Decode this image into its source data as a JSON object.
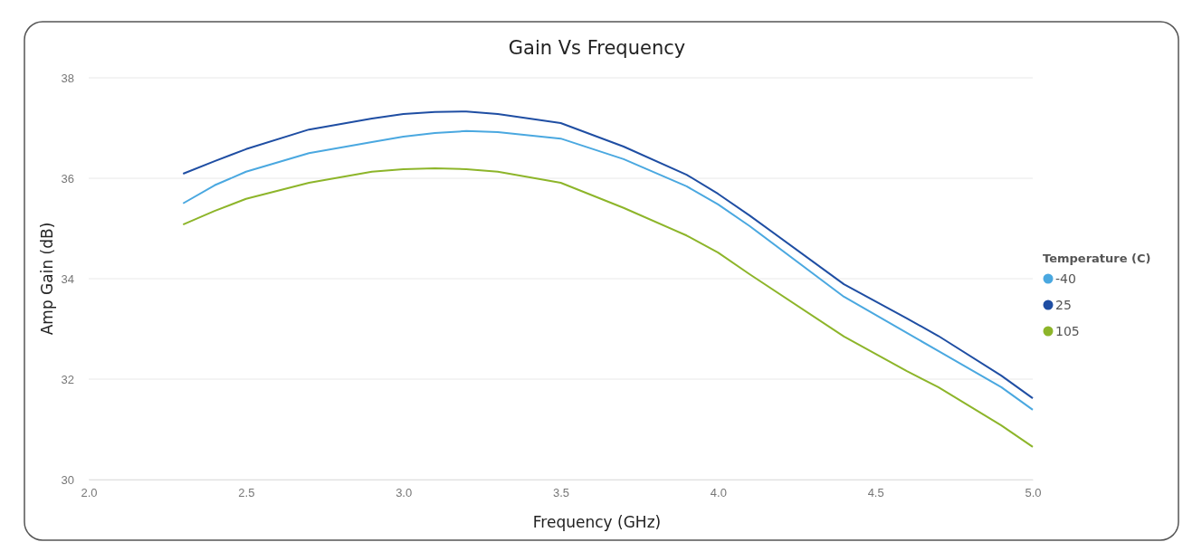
{
  "chart_data": {
    "type": "line",
    "title": "Gain Vs Frequency",
    "xlabel": "Frequency (GHz)",
    "ylabel": "Amp Gain (dB)",
    "legend_title": "Temperature (C)",
    "x": [
      2.3,
      2.4,
      2.5,
      2.7,
      2.9,
      3.0,
      3.1,
      3.2,
      3.3,
      3.5,
      3.7,
      3.9,
      4.0,
      4.1,
      4.4,
      4.6,
      4.7,
      4.9,
      5.0
    ],
    "series": [
      {
        "name": "-40",
        "color": "#4aa8e0",
        "values": [
          35.5,
          35.86,
          36.13,
          36.5,
          36.72,
          36.83,
          36.9,
          36.94,
          36.92,
          36.79,
          36.38,
          35.84,
          35.48,
          35.05,
          33.64,
          32.92,
          32.56,
          31.84,
          31.39
        ]
      },
      {
        "name": "25",
        "color": "#1f4ea3",
        "values": [
          36.09,
          36.34,
          36.58,
          36.97,
          37.19,
          37.28,
          37.32,
          37.33,
          37.28,
          37.1,
          36.63,
          36.07,
          35.69,
          35.26,
          33.89,
          33.21,
          32.86,
          32.07,
          31.62
        ]
      },
      {
        "name": "105",
        "color": "#8db52a",
        "values": [
          35.08,
          35.35,
          35.59,
          35.91,
          36.13,
          36.18,
          36.2,
          36.18,
          36.13,
          35.91,
          35.41,
          34.86,
          34.52,
          34.09,
          32.85,
          32.16,
          31.84,
          31.08,
          30.65
        ]
      }
    ],
    "xlim": [
      2,
      5
    ],
    "xticks": [
      {
        "value": 2,
        "label": "2.0"
      },
      2.5,
      {
        "value": 3,
        "label": "3.0"
      },
      3.5,
      {
        "value": 4,
        "label": "4.0"
      },
      4.5,
      {
        "value": 5,
        "label": "5.0"
      }
    ],
    "ylim": [
      30,
      38
    ],
    "yticks": [
      30,
      32,
      34,
      36,
      38
    ],
    "grid": "y",
    "legend": "right",
    "marker": "none",
    "line_style": "solid"
  }
}
